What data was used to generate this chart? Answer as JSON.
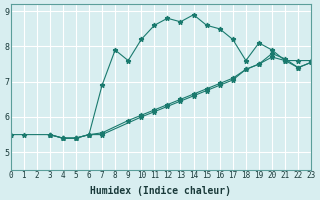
{
  "title": "",
  "xlabel": "Humidex (Indice chaleur)",
  "ylabel": "",
  "bg_color": "#d8eef0",
  "grid_color": "#ffffff",
  "line_color": "#1a7a6e",
  "xlim": [
    0,
    23
  ],
  "ylim": [
    4.5,
    9.2
  ],
  "xticks": [
    0,
    1,
    2,
    3,
    4,
    5,
    6,
    7,
    8,
    9,
    10,
    11,
    12,
    13,
    14,
    15,
    16,
    17,
    18,
    19,
    20,
    21,
    22,
    23
  ],
  "yticks": [
    5,
    6,
    7,
    8,
    9
  ],
  "series1_x": [
    0,
    1,
    3,
    4,
    5,
    6,
    7,
    8,
    9,
    10,
    11,
    12,
    13,
    14,
    15,
    16,
    17,
    18,
    19,
    20,
    21,
    22,
    23
  ],
  "series1_y": [
    5.5,
    5.5,
    5.5,
    5.4,
    5.4,
    5.5,
    6.9,
    7.9,
    7.6,
    8.2,
    8.6,
    8.8,
    8.7,
    8.9,
    8.6,
    8.5,
    8.2,
    7.6,
    8.1,
    7.9,
    7.6,
    7.6,
    7.6
  ],
  "series2_x": [
    3,
    4,
    5,
    6,
    7,
    10,
    11,
    12,
    13,
    14,
    15,
    16,
    17,
    18,
    19,
    20,
    21,
    22,
    23
  ],
  "series2_y": [
    5.5,
    5.4,
    5.4,
    5.5,
    5.5,
    6.0,
    6.15,
    6.3,
    6.45,
    6.6,
    6.75,
    6.9,
    7.05,
    7.35,
    7.5,
    7.8,
    7.65,
    7.4,
    7.55
  ],
  "series3_x": [
    3,
    4,
    5,
    6,
    7,
    9,
    10,
    11,
    12,
    13,
    14,
    15,
    16,
    17,
    18,
    19,
    20,
    21,
    22,
    23
  ],
  "series3_y": [
    5.5,
    5.4,
    5.4,
    5.5,
    5.55,
    5.9,
    6.05,
    6.2,
    6.35,
    6.5,
    6.65,
    6.8,
    6.95,
    7.1,
    7.35,
    7.5,
    7.7,
    7.6,
    7.4,
    7.55
  ]
}
